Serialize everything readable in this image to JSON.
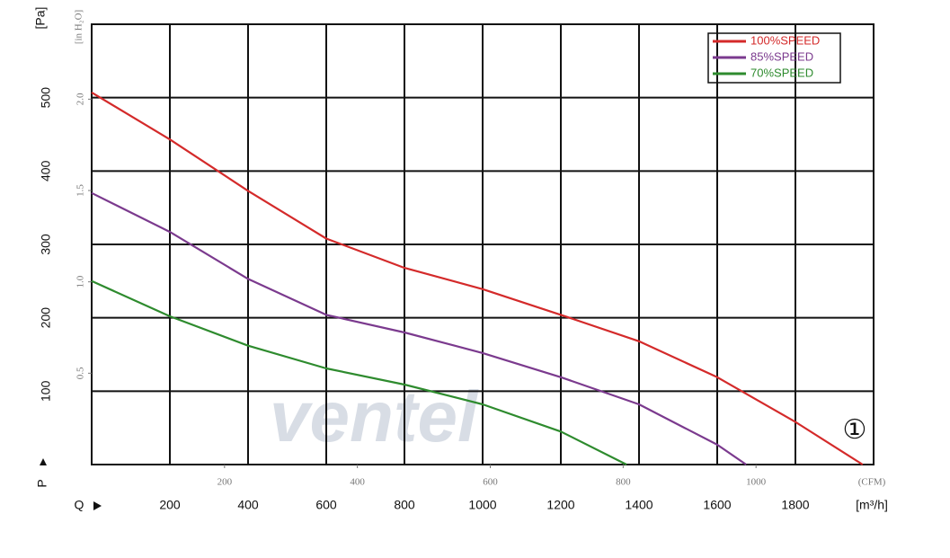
{
  "chart_data": {
    "type": "line",
    "y_label": "[Pa]",
    "y2_label": "[in H₂O]",
    "x_label": "[m³/h]",
    "x2_label": "(CFM)",
    "y_symbol": "P",
    "x_symbol": "Q",
    "annotation": "①",
    "watermark": "ventel",
    "xlim": [
      0,
      2000
    ],
    "xticks": [
      200,
      400,
      600,
      800,
      1000,
      1200,
      1400,
      1600,
      1800
    ],
    "ylim": [
      0,
      600
    ],
    "yticks": [
      100,
      200,
      300,
      400,
      500
    ],
    "y2lim": [
      0,
      2.41
    ],
    "y2ticks": [
      0.5,
      {
        "value": 1.0,
        "label": "1.0"
      },
      1.5,
      {
        "value": 2.0,
        "label": "2.0"
      }
    ],
    "x2lim": [
      0,
      1177
    ],
    "x2ticks": [
      200,
      400,
      600,
      800,
      1000
    ],
    "grid": true,
    "legend": "upper right",
    "series": [
      {
        "name": "100%SPEED",
        "color": "#d42a2a",
        "x": [
          0,
          200,
          400,
          600,
          800,
          1000,
          1200,
          1400,
          1600,
          1800,
          1972
        ],
        "values": [
          507,
          443,
          373,
          308,
          268,
          239,
          204,
          168,
          119,
          58,
          0
        ]
      },
      {
        "name": "85%SPEED",
        "color": "#7b3a8e",
        "x": [
          0,
          200,
          400,
          600,
          800,
          1000,
          1200,
          1400,
          1600,
          1674
        ],
        "values": [
          370,
          317,
          253,
          204,
          180,
          152,
          119,
          82,
          27,
          0
        ]
      },
      {
        "name": "70%SPEED",
        "color": "#2e8b2e",
        "x": [
          0,
          200,
          400,
          600,
          800,
          1000,
          1200,
          1368
        ],
        "values": [
          250,
          202,
          162,
          131,
          109,
          82,
          45,
          0
        ]
      }
    ]
  }
}
